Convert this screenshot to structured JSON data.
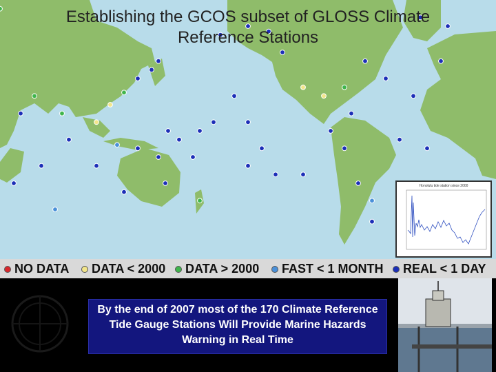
{
  "title": "Establishing the GCOS subset of GLOSS Climate Reference Stations",
  "legend": [
    {
      "label": "NO DATA",
      "color": "#d9262b"
    },
    {
      "label": "DATA < 2000",
      "color": "#f2e58a"
    },
    {
      "label": "DATA > 2000",
      "color": "#3fb54c"
    },
    {
      "label": "FAST < 1 MONTH",
      "color": "#4a90d9"
    },
    {
      "label": "REAL < 1 DAY",
      "color": "#1c2fb8"
    }
  ],
  "caption": "By the end of 2007 most of the 170 Climate Reference Tide Gauge Stations Will Provide Marine Hazards Warning in Real Time",
  "chart_thumb": {
    "title": "Honolulu tide station since 2000",
    "lines": "blue oscillating series"
  },
  "colors": {
    "ocean": "#b8dcea",
    "land": "#8fbc6a",
    "caption_bg": "#13167e"
  },
  "stations": [
    {
      "lon": 170,
      "lat": -15,
      "status": "real"
    },
    {
      "lon": 160,
      "lat": -5,
      "status": "real"
    },
    {
      "lon": 152,
      "lat": 0,
      "status": "real"
    },
    {
      "lon": 175,
      "lat": 0,
      "status": "real"
    },
    {
      "lon": -175,
      "lat": 5,
      "status": "real"
    },
    {
      "lon": -160,
      "lat": 20,
      "status": "real"
    },
    {
      "lon": -150,
      "lat": 5,
      "status": "real"
    },
    {
      "lon": -140,
      "lat": -10,
      "status": "real"
    },
    {
      "lon": -150,
      "lat": -20,
      "status": "real"
    },
    {
      "lon": -130,
      "lat": -25,
      "status": "real"
    },
    {
      "lon": -110,
      "lat": -25,
      "status": "real"
    },
    {
      "lon": -80,
      "lat": -10,
      "status": "real"
    },
    {
      "lon": -90,
      "lat": 0,
      "status": "real"
    },
    {
      "lon": -70,
      "lat": -30,
      "status": "real"
    },
    {
      "lon": -60,
      "lat": -40,
      "status": "fast"
    },
    {
      "lon": -60,
      "lat": -52,
      "status": "real"
    },
    {
      "lon": -40,
      "lat": -5,
      "status": "real"
    },
    {
      "lon": -20,
      "lat": -10,
      "status": "real"
    },
    {
      "lon": -15,
      "lat": -35,
      "status": "real"
    },
    {
      "lon": -30,
      "lat": 20,
      "status": "real"
    },
    {
      "lon": -50,
      "lat": 30,
      "status": "real"
    },
    {
      "lon": -65,
      "lat": 40,
      "status": "real"
    },
    {
      "lon": -125,
      "lat": 45,
      "status": "real"
    },
    {
      "lon": -135,
      "lat": 57,
      "status": "real"
    },
    {
      "lon": -150,
      "lat": 60,
      "status": "real"
    },
    {
      "lon": -170,
      "lat": 55,
      "status": "real"
    },
    {
      "lon": 140,
      "lat": 35,
      "status": "real"
    },
    {
      "lon": 145,
      "lat": 40,
      "status": "real"
    },
    {
      "lon": 130,
      "lat": 30,
      "status": "real"
    },
    {
      "lon": 120,
      "lat": 22,
      "status": "post2000"
    },
    {
      "lon": 110,
      "lat": 15,
      "status": "pre2000"
    },
    {
      "lon": 100,
      "lat": 5,
      "status": "pre2000"
    },
    {
      "lon": 115,
      "lat": -8,
      "status": "fast"
    },
    {
      "lon": 130,
      "lat": -10,
      "status": "real"
    },
    {
      "lon": 145,
      "lat": -15,
      "status": "real"
    },
    {
      "lon": 150,
      "lat": -30,
      "status": "real"
    },
    {
      "lon": 175,
      "lat": -40,
      "status": "post2000"
    },
    {
      "lon": 120,
      "lat": -35,
      "status": "real"
    },
    {
      "lon": 100,
      "lat": -20,
      "status": "real"
    },
    {
      "lon": 75,
      "lat": 10,
      "status": "post2000"
    },
    {
      "lon": 80,
      "lat": -5,
      "status": "real"
    },
    {
      "lon": 60,
      "lat": -20,
      "status": "real"
    },
    {
      "lon": 70,
      "lat": -45,
      "status": "fast"
    },
    {
      "lon": 40,
      "lat": -30,
      "status": "real"
    },
    {
      "lon": 55,
      "lat": 20,
      "status": "post2000"
    },
    {
      "lon": 45,
      "lat": 10,
      "status": "real"
    },
    {
      "lon": 10,
      "lat": 55,
      "status": "real"
    },
    {
      "lon": 0,
      "lat": 50,
      "status": "post2000"
    },
    {
      "lon": -5,
      "lat": 60,
      "status": "real"
    },
    {
      "lon": 20,
      "lat": 40,
      "status": "post2000"
    },
    {
      "lon": 30,
      "lat": 70,
      "status": "post2000"
    },
    {
      "lon": -10,
      "lat": 40,
      "status": "real"
    },
    {
      "lon": -25,
      "lat": 65,
      "status": "real"
    },
    {
      "lon": 15,
      "lat": -35,
      "status": "real"
    },
    {
      "lon": -80,
      "lat": 25,
      "status": "post2000"
    },
    {
      "lon": -95,
      "lat": 20,
      "status": "pre2000"
    },
    {
      "lon": -110,
      "lat": 25,
      "status": "pre2000"
    },
    {
      "lon": -75,
      "lat": 10,
      "status": "real"
    }
  ]
}
